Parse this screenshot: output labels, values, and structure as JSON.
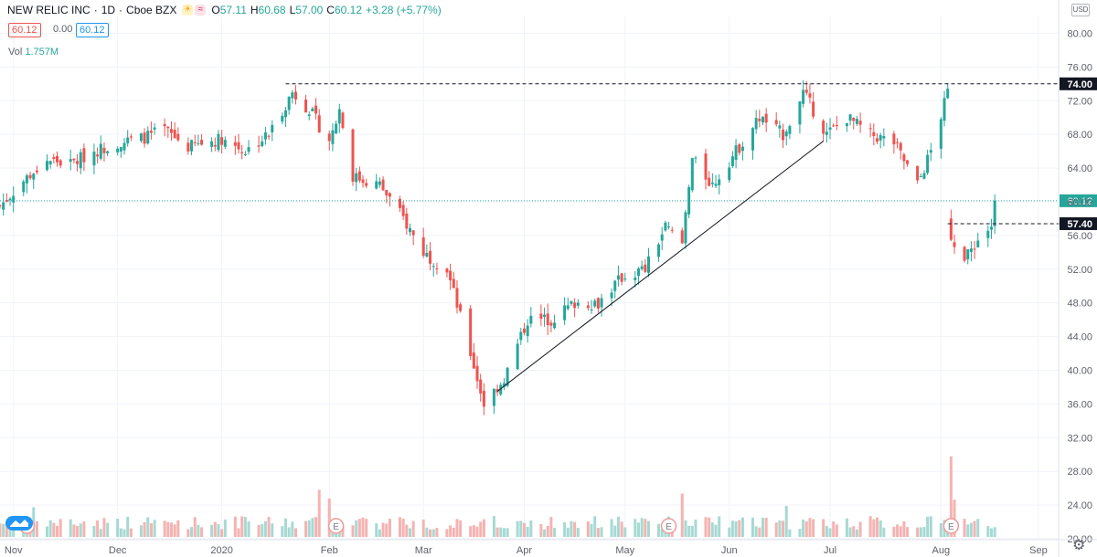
{
  "header": {
    "symbol": "NEW RELIC INC",
    "interval": "1D",
    "exchange": "Cboe BZX",
    "open_label": "O",
    "open": "57.11",
    "high_label": "H",
    "high": "60.68",
    "low_label": "L",
    "low": "57.00",
    "close_label": "C",
    "close": "60.12",
    "change": "+3.28 (+5.77%)",
    "bid": "60.12",
    "spread": "0.00",
    "ask": "60.12"
  },
  "volume": {
    "label": "Vol",
    "value": "1.757M"
  },
  "currency": "USD",
  "colors": {
    "up": "#26a69a",
    "down": "#ef5350",
    "up_vol": "#a7d9d3",
    "down_vol": "#f5b3b1",
    "grid": "#f0f3fa",
    "price_line": "#26a69a"
  },
  "icons": {
    "settings": "gear-icon",
    "logo": "tradingview-logo-icon",
    "earnings": "earnings-marker-icon"
  },
  "chart_data": {
    "type": "candlestick",
    "y_axis": {
      "side": "right",
      "min": 20,
      "max": 82,
      "ticks": [
        "80.00",
        "76.00",
        "72.00",
        "68.00",
        "64.00",
        "60.00",
        "56.00",
        "52.00",
        "48.00",
        "44.00",
        "40.00",
        "36.00",
        "32.00",
        "28.00",
        "24.00",
        "20.00"
      ]
    },
    "x_axis": {
      "start": "2019-10-28",
      "end": "2020-09-07",
      "tick_labels": [
        {
          "label": "Nov",
          "date": "2019-11-01"
        },
        {
          "label": "Dec",
          "date": "2019-12-02"
        },
        {
          "label": "2020",
          "date": "2020-01-02"
        },
        {
          "label": "Feb",
          "date": "2020-02-03"
        },
        {
          "label": "Mar",
          "date": "2020-03-02"
        },
        {
          "label": "Apr",
          "date": "2020-04-01"
        },
        {
          "label": "May",
          "date": "2020-05-01"
        },
        {
          "label": "Jun",
          "date": "2020-06-01"
        },
        {
          "label": "Jul",
          "date": "2020-07-01"
        },
        {
          "label": "Aug",
          "date": "2020-08-03"
        },
        {
          "label": "Sep",
          "date": "2020-09-01"
        }
      ]
    },
    "close_path": [
      [
        "2019-10-28",
        59.5
      ],
      [
        "2019-11-04",
        62.5
      ],
      [
        "2019-11-11",
        65
      ],
      [
        "2019-11-18",
        64.5
      ],
      [
        "2019-11-25",
        66
      ],
      [
        "2019-12-02",
        67
      ],
      [
        "2019-12-09",
        67.5
      ],
      [
        "2019-12-16",
        68.5
      ],
      [
        "2019-12-23",
        66.5
      ],
      [
        "2020-01-02",
        67.5
      ],
      [
        "2020-01-09",
        66
      ],
      [
        "2020-01-16",
        68
      ],
      [
        "2020-01-23",
        73
      ],
      [
        "2020-01-28",
        71
      ],
      [
        "2020-02-03",
        67
      ],
      [
        "2020-02-06",
        71
      ],
      [
        "2020-02-10",
        63
      ],
      [
        "2020-02-18",
        62
      ],
      [
        "2020-02-25",
        58
      ],
      [
        "2020-03-02",
        54
      ],
      [
        "2020-03-09",
        52
      ],
      [
        "2020-03-16",
        42
      ],
      [
        "2020-03-20",
        36
      ],
      [
        "2020-03-26",
        39
      ],
      [
        "2020-04-02",
        46
      ],
      [
        "2020-04-09",
        46
      ],
      [
        "2020-04-16",
        48
      ],
      [
        "2020-04-23",
        48
      ],
      [
        "2020-04-30",
        51
      ],
      [
        "2020-05-07",
        52
      ],
      [
        "2020-05-13",
        57
      ],
      [
        "2020-05-18",
        55
      ],
      [
        "2020-05-21",
        65
      ],
      [
        "2020-05-27",
        62
      ],
      [
        "2020-06-03",
        66
      ],
      [
        "2020-06-10",
        70
      ],
      [
        "2020-06-17",
        68
      ],
      [
        "2020-06-23",
        73
      ],
      [
        "2020-06-30",
        68
      ],
      [
        "2020-07-06",
        70
      ],
      [
        "2020-07-13",
        68
      ],
      [
        "2020-07-20",
        67
      ],
      [
        "2020-07-27",
        62
      ],
      [
        "2020-07-31",
        66
      ],
      [
        "2020-08-05",
        73
      ],
      [
        "2020-08-06",
        56
      ],
      [
        "2020-08-10",
        53
      ],
      [
        "2020-08-13",
        55
      ],
      [
        "2020-08-18",
        57.11
      ],
      [
        "2020-08-19",
        60.12
      ]
    ],
    "volume_max_m": 7.0,
    "volume_spikes": [
      {
        "date": "2019-11-07",
        "value_m": 2.4
      },
      {
        "date": "2020-01-31",
        "value_m": 3.8
      },
      {
        "date": "2020-02-03",
        "value_m": 3.1
      },
      {
        "date": "2020-05-18",
        "value_m": 3.5
      },
      {
        "date": "2020-06-18",
        "value_m": 2.5
      },
      {
        "date": "2020-08-06",
        "value_m": 6.5
      },
      {
        "date": "2020-08-07",
        "value_m": 3.0
      }
    ],
    "annotations": {
      "resistance": {
        "value": 74.0,
        "label": "74.00",
        "from": "2020-01-21",
        "to": "2020-09-09"
      },
      "gap_level": {
        "value": 57.4,
        "label": "57.40",
        "from": "2020-08-05",
        "to": "2020-09-09"
      },
      "trendline": {
        "from_date": "2020-03-24",
        "from_value": 37.5,
        "to_date": "2020-06-29",
        "to_value": 67.2
      },
      "last_price": {
        "value": 60.12,
        "label": "60.12"
      }
    },
    "earnings_markers": [
      "2019-11-05",
      "2020-02-05",
      "2020-05-14",
      "2020-08-06"
    ]
  }
}
